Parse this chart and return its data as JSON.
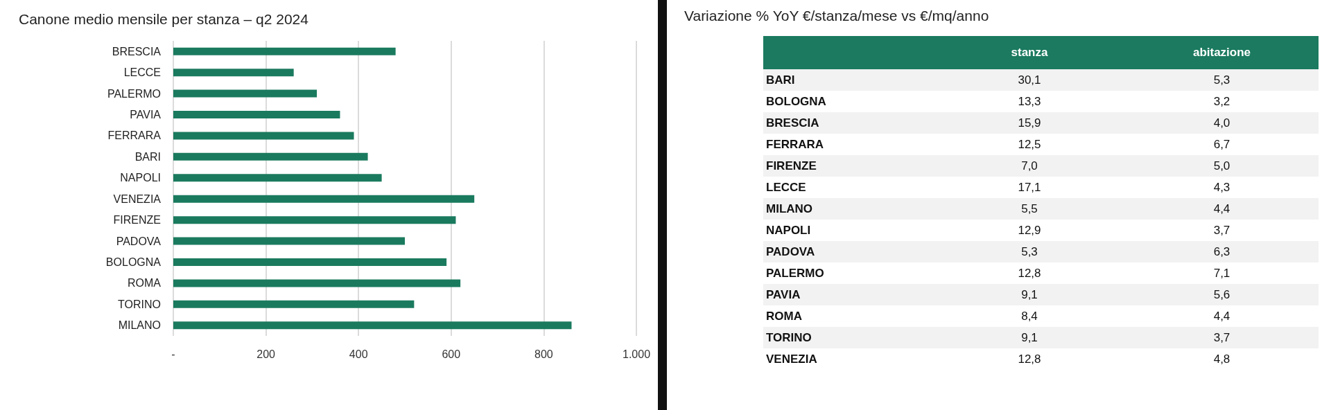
{
  "chart_data": [
    {
      "type": "bar",
      "orientation": "horizontal",
      "title": "Canone medio mensile per stanza – q2 2024",
      "categories": [
        "BRESCIA",
        "LECCE",
        "PALERMO",
        "PAVIA",
        "FERRARA",
        "BARI",
        "NAPOLI",
        "VENEZIA",
        "FIRENZE",
        "PADOVA",
        "BOLOGNA",
        "ROMA",
        "TORINO",
        "MILANO"
      ],
      "values": [
        480,
        260,
        310,
        360,
        390,
        420,
        450,
        650,
        610,
        500,
        590,
        620,
        520,
        860
      ],
      "color": "#1a7a5e",
      "xlim": [
        0,
        1000
      ],
      "xticks": [
        {
          "value": 0,
          "label": "-"
        },
        200,
        400,
        600,
        800,
        {
          "value": 1000,
          "label": "1.000"
        }
      ],
      "grid": "x"
    },
    {
      "type": "other",
      "title": "Variazione % YoY €/stanza/mese vs €/mq/anno",
      "categories": [
        "BARI",
        "BOLOGNA",
        "BRESCIA",
        "FERRARA",
        "FIRENZE",
        "LECCE",
        "MILANO",
        "NAPOLI",
        "PADOVA",
        "PALERMO",
        "PAVIA",
        "ROMA",
        "TORINO",
        "VENEZIA"
      ],
      "series": [
        {
          "name": "stanza",
          "values": [
            30.1,
            13.3,
            15.9,
            12.5,
            7.0,
            17.1,
            5.5,
            12.9,
            5.3,
            12.8,
            9.1,
            8.4,
            9.1,
            12.8
          ],
          "value_labels": [
            "30,1",
            "13,3",
            "15,9",
            "12,5",
            "7,0",
            "17,1",
            "5,5",
            "12,9",
            "5,3",
            "12,8",
            "9,1",
            "8,4",
            "9,1",
            "12,8"
          ]
        },
        {
          "name": "abitazione",
          "values": [
            5.3,
            3.2,
            4.0,
            6.7,
            5.0,
            4.3,
            4.4,
            3.7,
            6.3,
            7.1,
            5.6,
            4.4,
            3.7,
            4.8
          ],
          "value_labels": [
            "5,3",
            "3,2",
            "4,0",
            "6,7",
            "5,0",
            "4,3",
            "4,4",
            "3,7",
            "6,3",
            "7,1",
            "5,6",
            "4,4",
            "3,7",
            "4,8"
          ]
        }
      ]
    }
  ]
}
